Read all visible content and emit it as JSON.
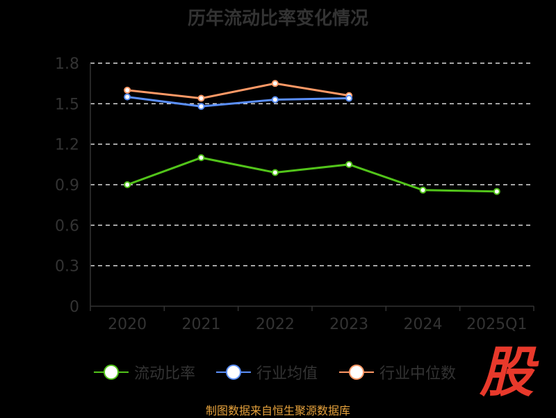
{
  "chart_data": {
    "type": "line",
    "title": "历年流动比率变化情况",
    "categories": [
      "2020",
      "2021",
      "2022",
      "2023",
      "2024",
      "2025Q1"
    ],
    "ylim": [
      0,
      1.8
    ],
    "yticks": [
      "0",
      "0.3",
      "0.6",
      "0.9",
      "1.2",
      "1.5",
      "1.8"
    ],
    "grid": true,
    "legend_position": "bottom",
    "series": [
      {
        "name": "流动比率",
        "color": "#52c41a",
        "values": [
          0.9,
          1.1,
          0.99,
          1.05,
          0.86,
          0.85
        ]
      },
      {
        "name": "行业均值",
        "color": "#5b8ff9",
        "values": [
          1.55,
          1.48,
          1.53,
          1.54,
          null,
          null
        ]
      },
      {
        "name": "行业中位数",
        "color": "#ff9966",
        "values": [
          1.6,
          1.54,
          1.65,
          1.56,
          null,
          null
        ]
      }
    ]
  },
  "logo_text": "股",
  "source": "制图数据来自恒生聚源数据库"
}
